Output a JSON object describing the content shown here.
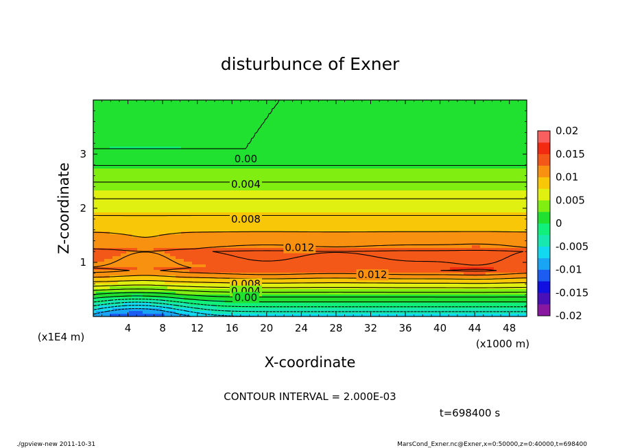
{
  "chart_data": {
    "type": "contour",
    "title": "disturbunce of Exner",
    "xlabel": "X-coordinate",
    "ylabel": "Z-coordinate",
    "x_unit": "(x1000 m)",
    "y_unit": "(x1E4 m)",
    "xlim": [
      0,
      50
    ],
    "ylim": [
      0,
      4
    ],
    "x_ticks": [
      "4",
      "8",
      "12",
      "16",
      "20",
      "24",
      "28",
      "32",
      "36",
      "40",
      "44",
      "48"
    ],
    "y_ticks": [
      "1",
      "2",
      "3"
    ],
    "contour_labels": [
      {
        "text": "0.00",
        "x": 17.6,
        "z": 2.91
      },
      {
        "text": "0.004",
        "x": 17.6,
        "z": 2.44
      },
      {
        "text": "0.008",
        "x": 17.6,
        "z": 1.8
      },
      {
        "text": "0.012",
        "x": 23.8,
        "z": 1.27
      },
      {
        "text": "0.012",
        "x": 32.2,
        "z": 0.77
      },
      {
        "text": "0.008",
        "x": 17.6,
        "z": 0.6
      },
      {
        "text": "0.004",
        "x": 17.6,
        "z": 0.47
      },
      {
        "text": "0.00",
        "x": 17.6,
        "z": 0.35
      }
    ],
    "colorbar": {
      "min": -0.02,
      "max": 0.02,
      "ticks": [
        "0.02",
        "0.015",
        "0.01",
        "0.005",
        "0",
        "-0.005",
        "-0.01",
        "-0.015",
        "-0.02"
      ]
    },
    "contour_interval_text": "CONTOUR INTERVAL = 2.000E-03",
    "time_text": "t=698400 s"
  },
  "footer": {
    "left": "./gpview-new   2011-10-31",
    "right": "MarsCond_Exner.nc@Exner,x=0:50000,z=0:40000,t=698400"
  }
}
